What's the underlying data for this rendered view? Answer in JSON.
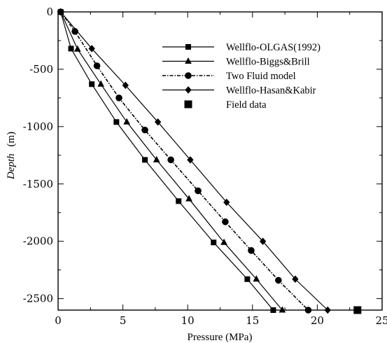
{
  "chart_data": {
    "type": "line",
    "xlabel": "Pressure (MPa)",
    "ylabel_italic": "Depth",
    "ylabel_unit": "(m)",
    "xlim": [
      0,
      25
    ],
    "ylim": [
      -2600,
      0
    ],
    "x_ticks": [
      0,
      5,
      10,
      15,
      20,
      25
    ],
    "y_ticks": [
      0,
      -500,
      -1000,
      -1500,
      -2000,
      -2500
    ],
    "grid": false,
    "legend_position": "top-right",
    "series": [
      {
        "name": "Wellflo-OLGAS(1992)",
        "marker": "square",
        "color": "#000000",
        "x": [
          0.2,
          1.0,
          2.6,
          4.5,
          6.7,
          9.3,
          12.0,
          14.6,
          16.6
        ],
        "y": [
          0,
          -320,
          -630,
          -960,
          -1290,
          -1650,
          -2010,
          -2330,
          -2600
        ]
      },
      {
        "name": "Wellflo-Biggs&Brill",
        "marker": "triangle",
        "color": "#000000",
        "x": [
          0.2,
          1.5,
          3.3,
          5.3,
          7.6,
          10.1,
          12.8,
          15.3,
          17.3
        ],
        "y": [
          0,
          -325,
          -630,
          -960,
          -1290,
          -1630,
          -2010,
          -2330,
          -2600
        ]
      },
      {
        "name": "Two Fluid model",
        "marker": "circle",
        "color": "#000000",
        "x": [
          0.2,
          1.3,
          3.0,
          4.7,
          6.7,
          8.7,
          10.8,
          12.9,
          14.9,
          17.0,
          19.3
        ],
        "y": [
          0,
          -170,
          -470,
          -750,
          -1030,
          -1290,
          -1560,
          -1830,
          -2080,
          -2340,
          -2600
        ]
      },
      {
        "name": "Wellflo-Hasan&Kabir",
        "marker": "diamond",
        "color": "#000000",
        "x": [
          0.2,
          2.6,
          5.2,
          7.7,
          10.2,
          13.0,
          15.8,
          18.3,
          20.8
        ],
        "y": [
          0,
          -320,
          -640,
          -960,
          -1290,
          -1660,
          -2000,
          -2330,
          -2600
        ]
      },
      {
        "name": "Field data",
        "marker": "square-large",
        "color": "#000000",
        "x": [
          23.1
        ],
        "y": [
          -2600
        ]
      }
    ]
  }
}
